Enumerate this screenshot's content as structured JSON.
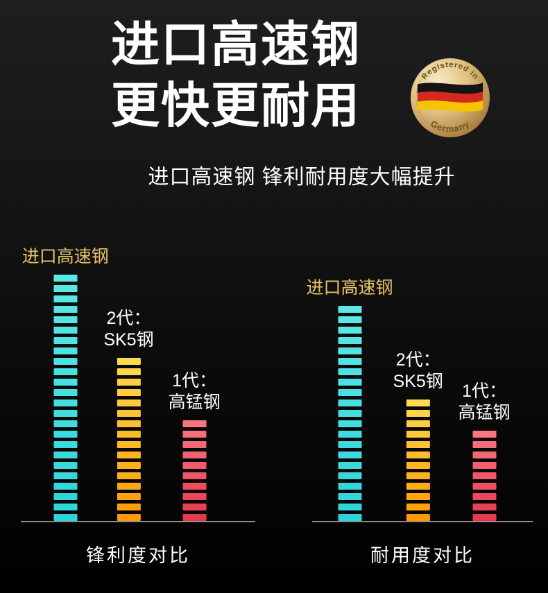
{
  "header": {
    "title_line1": "进口高速钢",
    "title_line2": "更快更耐用",
    "subtitle": "进口高速钢 锋利耐用度大幅提升"
  },
  "badge": {
    "arc_top": "Registered in",
    "arc_bottom": "Germany",
    "flag_colors": {
      "black": "#141414",
      "red": "#d5281e",
      "gold": "#f6c500"
    },
    "ring_color": "#d9b96a"
  },
  "colors": {
    "background_top": "#1e1e1e",
    "background_bottom": "#000000",
    "baseline_gray": "#8e8e8e",
    "label_gold": "#e7c469",
    "text_white": "#ffffff",
    "bar_cyan": "#3fdede",
    "bar_yellow": "#ffb908",
    "bar_red": "#ef4456"
  },
  "chart_data": [
    {
      "type": "bar",
      "title": "锋利度对比",
      "categories": [
        "进口高速钢",
        "2代：SK5钢",
        "1代：高锰钢"
      ],
      "values": [
        100,
        66,
        41
      ],
      "value_note": "relative bar heights, no numeric axis shown",
      "legend_position": "none",
      "grid": false,
      "bars": [
        {
          "label_lines": [
            "进口高速钢"
          ],
          "label_color": "#e7c469",
          "segments": 24,
          "color_top": "#5ce9e6",
          "color_bottom": "#2dd4da"
        },
        {
          "label_lines": [
            "2代：",
            "SK5钢"
          ],
          "label_color": "#ffffff",
          "segments": 16,
          "color_top": "#ffd94f",
          "color_bottom": "#ff9b00"
        },
        {
          "label_lines": [
            "1代：",
            "高锰钢"
          ],
          "label_color": "#ffffff",
          "segments": 10,
          "color_top": "#f97680",
          "color_bottom": "#e63950"
        }
      ]
    },
    {
      "type": "bar",
      "title": "耐用度对比",
      "categories": [
        "进口高速钢",
        "2代：SK5钢",
        "1代：高锰钢"
      ],
      "values": [
        100,
        56,
        42
      ],
      "value_note": "relative bar heights, no numeric axis shown",
      "legend_position": "none",
      "grid": false,
      "bars": [
        {
          "label_lines": [
            "进口高速钢"
          ],
          "label_color": "#e7c469",
          "segments": 21,
          "color_top": "#5ce9e6",
          "color_bottom": "#2dd4da"
        },
        {
          "label_lines": [
            "2代：",
            "SK5钢"
          ],
          "label_color": "#ffffff",
          "segments": 12,
          "color_top": "#ffd94f",
          "color_bottom": "#ff9b00"
        },
        {
          "label_lines": [
            "1代：",
            "高锰钢"
          ],
          "label_color": "#ffffff",
          "segments": 9,
          "color_top": "#f97680",
          "color_bottom": "#e63950"
        }
      ]
    }
  ]
}
